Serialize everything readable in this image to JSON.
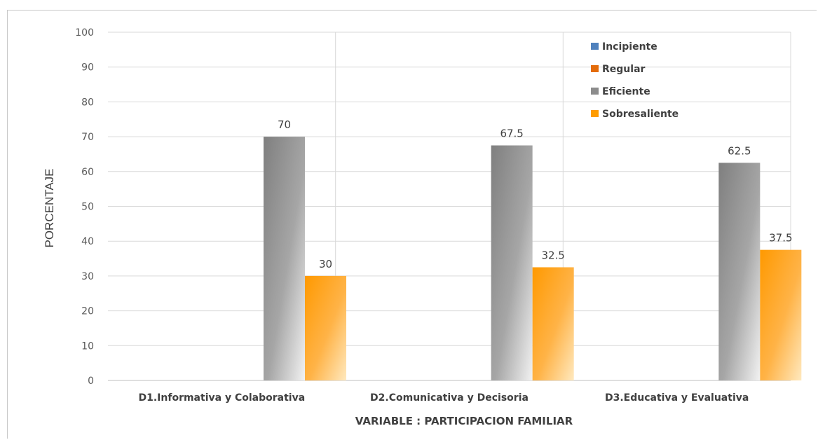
{
  "chart_data": {
    "type": "bar",
    "categories": [
      "D1.Informativa y Colaborativa",
      "D2.Comunicativa y Decisoria",
      "D3.Educativa y Evaluativa"
    ],
    "series": [
      {
        "name": "Incipiente",
        "values": [
          0,
          0,
          0
        ],
        "color": "#4f81bd"
      },
      {
        "name": "Regular",
        "values": [
          0,
          0,
          0
        ],
        "color": "#e46c0a"
      },
      {
        "name": "Eficiente",
        "values": [
          70,
          67.5,
          62.5
        ],
        "color": "#8c8c8c"
      },
      {
        "name": "Sobresaliente",
        "values": [
          30,
          32.5,
          37.5
        ],
        "color": "#ff9c00"
      }
    ],
    "data_labels": [
      [
        "",
        "",
        "70",
        "30"
      ],
      [
        "",
        "",
        "67.5",
        "32.5"
      ],
      [
        "",
        "",
        "62.5",
        "37.5"
      ]
    ],
    "xlabel": "VARIABLE : PARTICIPACION FAMILIAR",
    "ylabel": "PORCENTAJE",
    "ylim": [
      0,
      100
    ],
    "yticks": [
      0,
      10,
      20,
      30,
      40,
      50,
      60,
      70,
      80,
      90,
      100
    ],
    "grid": true,
    "legend_position": "top-right"
  }
}
